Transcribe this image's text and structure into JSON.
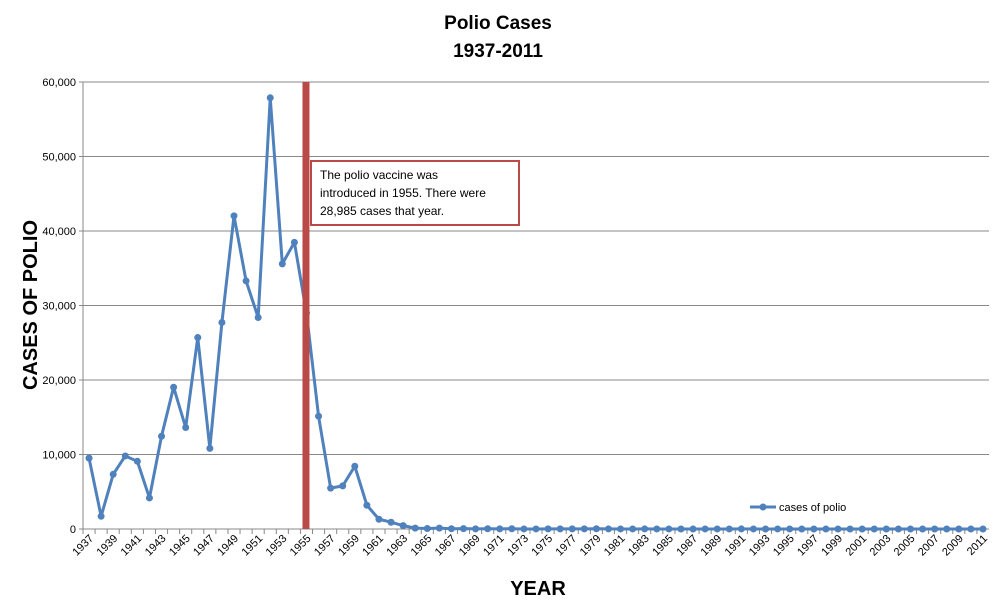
{
  "chart_data": {
    "type": "line",
    "title": [
      "Polio Cases",
      "1937-2011"
    ],
    "xlabel": "YEAR",
    "ylabel": "CASES OF POLIO",
    "ylim": [
      0,
      60000
    ],
    "yticks": [
      "0",
      "10,000",
      "20,000",
      "30,000",
      "40,000",
      "50,000",
      "60,000"
    ],
    "ytick_values": [
      0,
      10000,
      20000,
      30000,
      40000,
      50000,
      60000
    ],
    "grid": "horizontal",
    "legend_position": "bottom-right",
    "x": [
      1937,
      1938,
      1939,
      1940,
      1941,
      1942,
      1943,
      1944,
      1945,
      1946,
      1947,
      1948,
      1949,
      1950,
      1951,
      1952,
      1953,
      1954,
      1955,
      1956,
      1957,
      1958,
      1959,
      1960,
      1961,
      1962,
      1963,
      1964,
      1965,
      1966,
      1967,
      1968,
      1969,
      1970,
      1971,
      1972,
      1973,
      1974,
      1975,
      1976,
      1977,
      1978,
      1979,
      1980,
      1981,
      1982,
      1983,
      1984,
      1985,
      1986,
      1987,
      1988,
      1989,
      1990,
      1991,
      1992,
      1993,
      1994,
      1995,
      1996,
      1997,
      1998,
      1999,
      2000,
      2001,
      2002,
      2003,
      2004,
      2005,
      2006,
      2007,
      2008,
      2009,
      2010,
      2011
    ],
    "series": [
      {
        "name": "cases of polio",
        "color": "#4f81bd",
        "values": [
          9514,
          1705,
          7343,
          9804,
          9086,
          4167,
          12450,
          19029,
          13624,
          25698,
          10827,
          27726,
          42033,
          33300,
          28386,
          57879,
          35592,
          38476,
          28985,
          15140,
          5485,
          5787,
          8425,
          3190,
          1312,
          910,
          449,
          122,
          72,
          113,
          41,
          53,
          20,
          33,
          21,
          31,
          8,
          7,
          13,
          14,
          19,
          15,
          34,
          9,
          6,
          8,
          10,
          8,
          7,
          5,
          5,
          8,
          8,
          6,
          9,
          6,
          4,
          7,
          6,
          5,
          4,
          3,
          2,
          1,
          1,
          0,
          0,
          0,
          0,
          0,
          0,
          0,
          0,
          0,
          0
        ]
      }
    ],
    "vline": {
      "year": 1955,
      "color": "#b94a48"
    },
    "annotation": {
      "lines": [
        "The polio vaccine was",
        "introduced in 1955.  There were",
        "28,985  cases that year."
      ]
    }
  }
}
